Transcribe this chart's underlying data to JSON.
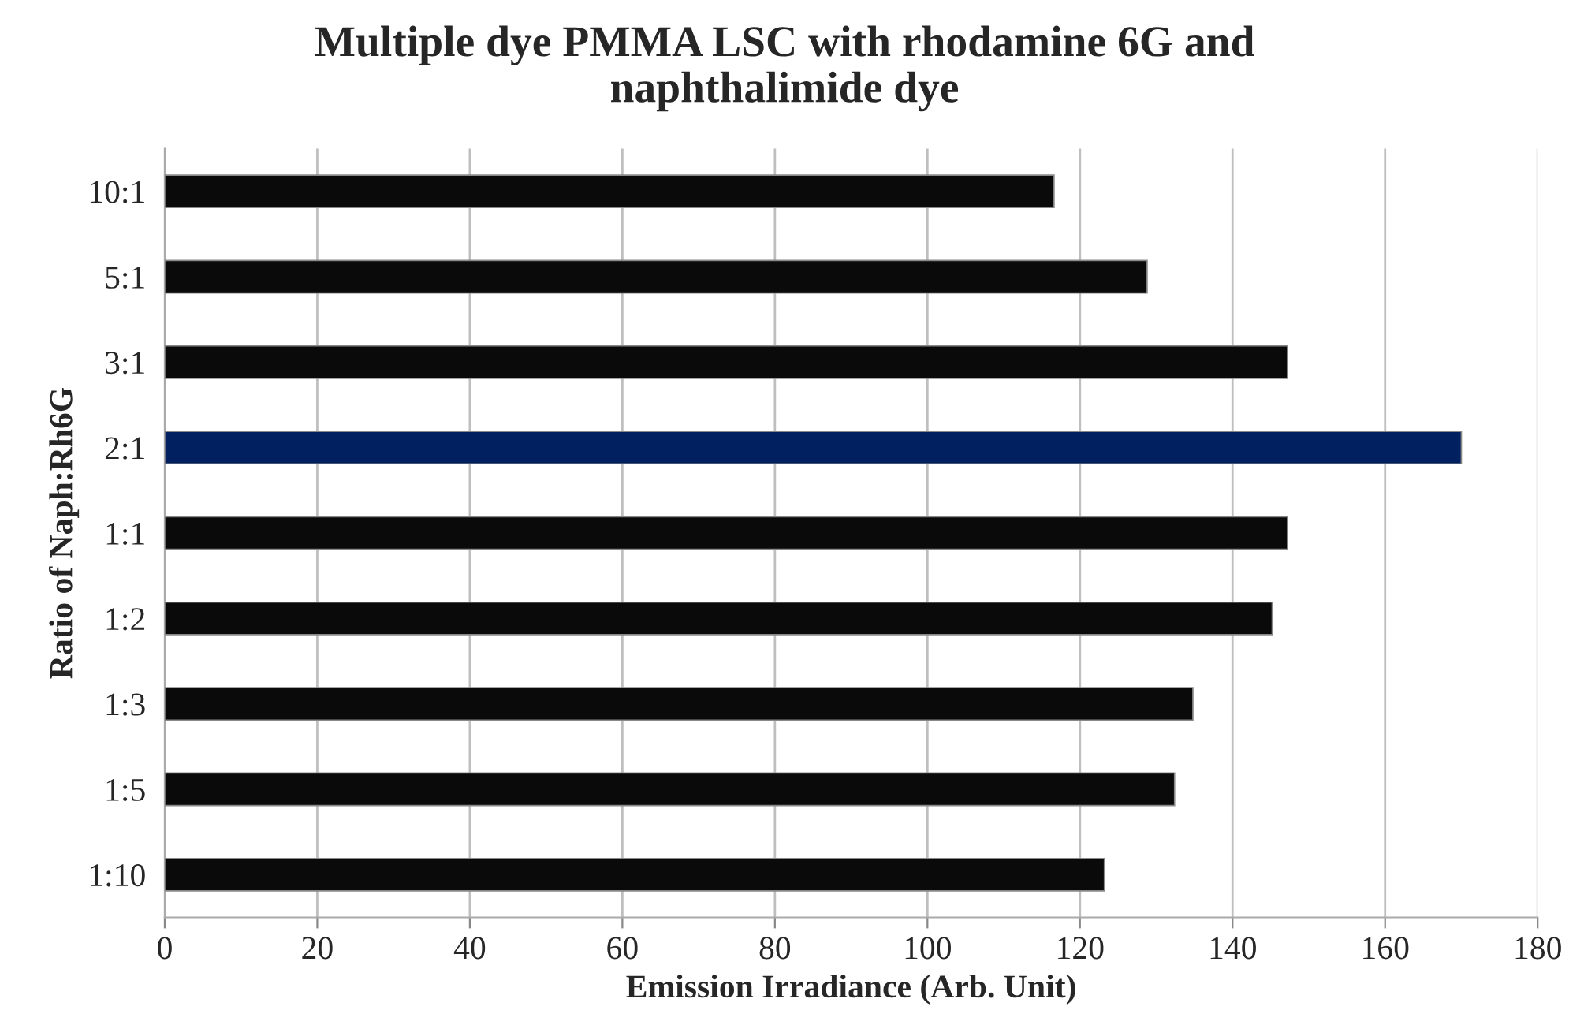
{
  "chart_data": {
    "type": "bar",
    "orientation": "horizontal",
    "title": "Multiple dye PMMA LSC with rhodamine 6G and\nnaphthalimide dye",
    "xlabel": "Emission Irradiance (Arb. Unit)",
    "ylabel": "Ratio of Naph:Rh6G",
    "categories": [
      "10:1",
      "5:1",
      "3:1",
      "2:1",
      "1:1",
      "1:2",
      "1:3",
      "1:5",
      "1:10"
    ],
    "values": [
      116.6,
      128.8,
      147.2,
      170,
      147.2,
      145.2,
      134.8,
      132.4,
      123.2
    ],
    "colors": [
      "#0a0a0a",
      "#0a0a0a",
      "#0a0a0a",
      "#002060",
      "#0a0a0a",
      "#0a0a0a",
      "#0a0a0a",
      "#0a0a0a",
      "#0a0a0a"
    ],
    "xlim": [
      0,
      180
    ],
    "xticks": [
      0,
      20,
      40,
      60,
      80,
      100,
      120,
      140,
      160,
      180
    ],
    "grid": "x"
  }
}
